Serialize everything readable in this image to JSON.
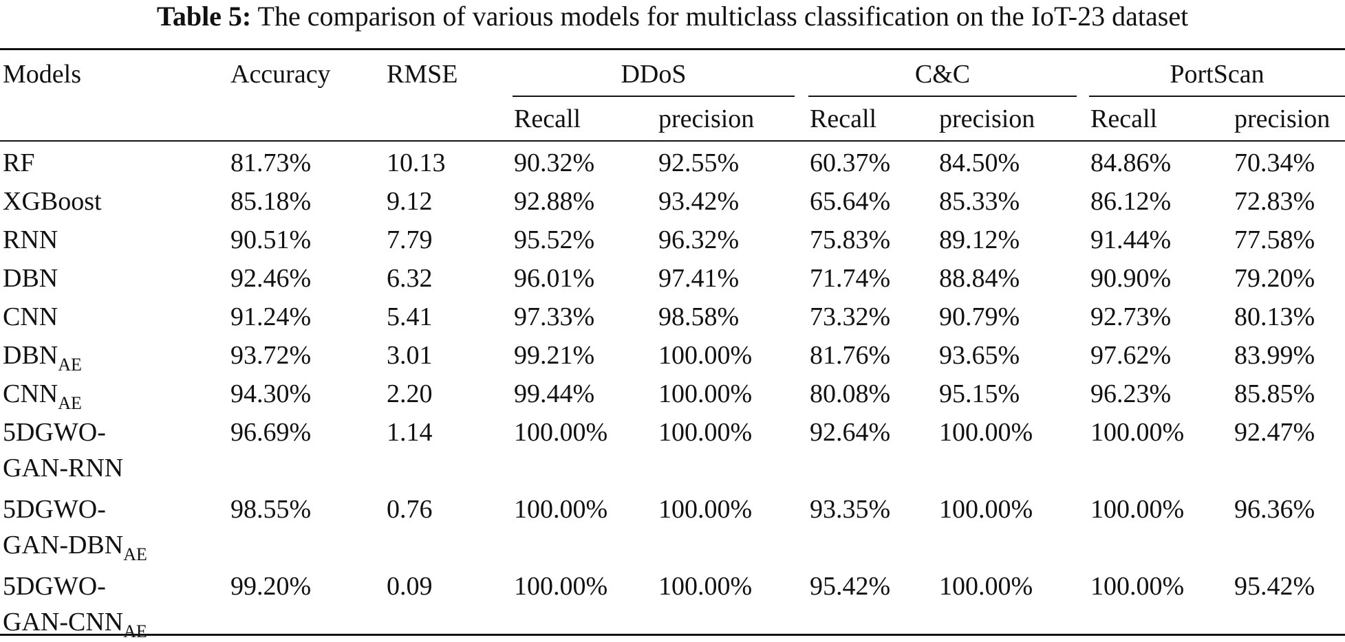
{
  "caption": {
    "label": "Table 5:",
    "text": "The comparison of various models for multiclass classification on the IoT-23 dataset"
  },
  "headers": {
    "models": "Models",
    "accuracy": "Accuracy",
    "rmse": "RMSE",
    "groups": [
      "DDoS",
      "C&C",
      "PortScan"
    ],
    "recall": "Recall",
    "precision": "precision"
  },
  "rows": [
    {
      "name_lines": [
        {
          "main": "RF",
          "sub": ""
        }
      ],
      "accuracy": "81.73%",
      "rmse": "10.13",
      "values": [
        "90.32%",
        "92.55%",
        "60.37%",
        "84.50%",
        "84.86%",
        "70.34%"
      ]
    },
    {
      "name_lines": [
        {
          "main": "XGBoost",
          "sub": ""
        }
      ],
      "accuracy": "85.18%",
      "rmse": "9.12",
      "values": [
        "92.88%",
        "93.42%",
        "65.64%",
        "85.33%",
        "86.12%",
        "72.83%"
      ]
    },
    {
      "name_lines": [
        {
          "main": "RNN",
          "sub": ""
        }
      ],
      "accuracy": "90.51%",
      "rmse": "7.79",
      "values": [
        "95.52%",
        "96.32%",
        "75.83%",
        "89.12%",
        "91.44%",
        "77.58%"
      ]
    },
    {
      "name_lines": [
        {
          "main": "DBN",
          "sub": ""
        }
      ],
      "accuracy": "92.46%",
      "rmse": "6.32",
      "values": [
        "96.01%",
        "97.41%",
        "71.74%",
        "88.84%",
        "90.90%",
        "79.20%"
      ]
    },
    {
      "name_lines": [
        {
          "main": "CNN",
          "sub": ""
        }
      ],
      "accuracy": "91.24%",
      "rmse": "5.41",
      "values": [
        "97.33%",
        "98.58%",
        "73.32%",
        "90.79%",
        "92.73%",
        "80.13%"
      ]
    },
    {
      "name_lines": [
        {
          "main": "DBN",
          "sub": "AE"
        }
      ],
      "accuracy": "93.72%",
      "rmse": "3.01",
      "values": [
        "99.21%",
        "100.00%",
        "81.76%",
        "93.65%",
        "97.62%",
        "83.99%"
      ]
    },
    {
      "name_lines": [
        {
          "main": "CNN",
          "sub": "AE"
        }
      ],
      "accuracy": "94.30%",
      "rmse": "2.20",
      "values": [
        "99.44%",
        "100.00%",
        "80.08%",
        "95.15%",
        "96.23%",
        "85.85%"
      ]
    },
    {
      "name_lines": [
        {
          "main": "5DGWO-",
          "sub": ""
        },
        {
          "main": "GAN-RNN",
          "sub": ""
        }
      ],
      "accuracy": "96.69%",
      "rmse": "1.14",
      "values": [
        "100.00%",
        "100.00%",
        "92.64%",
        "100.00%",
        "100.00%",
        "92.47%"
      ]
    },
    {
      "name_lines": [
        {
          "main": "5DGWO-",
          "sub": ""
        },
        {
          "main": "GAN-DBN",
          "sub": "AE"
        }
      ],
      "accuracy": "98.55%",
      "rmse": "0.76",
      "values": [
        "100.00%",
        "100.00%",
        "93.35%",
        "100.00%",
        "100.00%",
        "96.36%"
      ]
    },
    {
      "name_lines": [
        {
          "main": "5DGWO-",
          "sub": ""
        },
        {
          "main": "GAN-CNN",
          "sub": "AE"
        }
      ],
      "accuracy": "99.20%",
      "rmse": "0.09",
      "values": [
        "100.00%",
        "100.00%",
        "95.42%",
        "100.00%",
        "100.00%",
        "95.42%"
      ]
    }
  ]
}
